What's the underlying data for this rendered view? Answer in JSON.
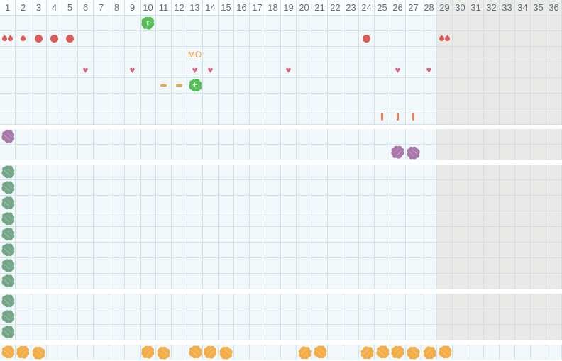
{
  "colors": {
    "page_background": "#ffffff",
    "grid_background": "#f2f7f9",
    "grid_line": "#cfe4ee",
    "header_background": "#fbfdfe",
    "inactive_background": "#e9e9e7",
    "inactive_header_background": "#ebebe9",
    "inactive_grid_line": "#d8dcde",
    "drop_red": "#dc5955",
    "heart_pink": "#d6607f",
    "orange_text": "#f0a345",
    "tally_orange": "#ee8155",
    "bright_green": "#54c055",
    "sage_green": "#73a687",
    "purple": "#a978aa",
    "orange_scribble": "#f2ad48"
  },
  "grid": {
    "total_days": 36,
    "inactive_from_day": 29,
    "day_labels": [
      "1",
      "2",
      "3",
      "4",
      "5",
      "6",
      "7",
      "8",
      "9",
      "10",
      "11",
      "12",
      "13",
      "14",
      "15",
      "16",
      "17",
      "18",
      "19",
      "20",
      "21",
      "22",
      "23",
      "24",
      "25",
      "26",
      "27",
      "28",
      "29",
      "30",
      "31",
      "32",
      "33",
      "34",
      "35",
      "36"
    ],
    "sections": [
      {
        "name": "daily-events",
        "grayed": true,
        "rows": [
          {
            "name": "marker-row",
            "marks": [
              {
                "day": 10,
                "type": "scribble",
                "color": "bright_green",
                "label": "r"
              }
            ]
          },
          {
            "name": "drops-row",
            "marks": [
              {
                "day": 1,
                "type": "drop_double"
              },
              {
                "day": 2,
                "type": "drop_small"
              },
              {
                "day": 3,
                "type": "drop_large"
              },
              {
                "day": 4,
                "type": "drop_large"
              },
              {
                "day": 5,
                "type": "drop_large"
              },
              {
                "day": 24,
                "type": "drop_large"
              },
              {
                "day": 29,
                "type": "drop_double"
              }
            ]
          },
          {
            "name": "note-row",
            "marks": [
              {
                "day": 13,
                "type": "text",
                "label": "MO"
              }
            ]
          },
          {
            "name": "hearts-row",
            "marks": [
              {
                "day": 6,
                "type": "heart"
              },
              {
                "day": 9,
                "type": "heart"
              },
              {
                "day": 13,
                "type": "heart"
              },
              {
                "day": 14,
                "type": "heart"
              },
              {
                "day": 19,
                "type": "heart"
              },
              {
                "day": 26,
                "type": "heart"
              },
              {
                "day": 28,
                "type": "heart"
              }
            ]
          },
          {
            "name": "plus-row",
            "marks": [
              {
                "day": 11,
                "type": "dash"
              },
              {
                "day": 12,
                "type": "dash"
              },
              {
                "day": 13,
                "type": "scribble",
                "color": "bright_green",
                "label": "+"
              }
            ]
          },
          {
            "name": "blank-row",
            "marks": []
          },
          {
            "name": "tally-row",
            "marks": [
              {
                "day": 25,
                "type": "tally"
              },
              {
                "day": 26,
                "type": "tally"
              },
              {
                "day": 27,
                "type": "tally"
              }
            ]
          }
        ]
      },
      {
        "name": "purple-section",
        "grayed": true,
        "rows": [
          {
            "name": "purple-row-1",
            "marks": [
              {
                "day": 1,
                "type": "scribble",
                "color": "purple"
              }
            ]
          },
          {
            "name": "purple-row-2",
            "marks": [
              {
                "day": 26,
                "type": "scribble",
                "color": "purple"
              },
              {
                "day": 27,
                "type": "scribble",
                "color": "purple"
              }
            ]
          }
        ]
      },
      {
        "name": "green-section-upper",
        "grayed": true,
        "rows": [
          {
            "name": "green-row-1",
            "marks": [
              {
                "day": 1,
                "type": "scribble",
                "color": "sage_green"
              }
            ]
          },
          {
            "name": "green-row-2",
            "marks": [
              {
                "day": 1,
                "type": "scribble",
                "color": "sage_green"
              }
            ]
          },
          {
            "name": "green-row-3",
            "marks": [
              {
                "day": 1,
                "type": "scribble",
                "color": "sage_green"
              }
            ]
          },
          {
            "name": "green-row-4",
            "marks": [
              {
                "day": 1,
                "type": "scribble",
                "color": "sage_green"
              }
            ]
          },
          {
            "name": "green-row-5",
            "marks": [
              {
                "day": 1,
                "type": "scribble",
                "color": "sage_green"
              }
            ]
          },
          {
            "name": "green-row-6",
            "marks": [
              {
                "day": 1,
                "type": "scribble",
                "color": "sage_green"
              }
            ]
          },
          {
            "name": "green-row-7",
            "marks": [
              {
                "day": 1,
                "type": "scribble",
                "color": "sage_green"
              }
            ]
          },
          {
            "name": "green-row-8",
            "marks": [
              {
                "day": 1,
                "type": "scribble",
                "color": "sage_green"
              }
            ]
          }
        ]
      },
      {
        "name": "green-section-lower",
        "grayed": true,
        "rows": [
          {
            "name": "green-row-9",
            "marks": [
              {
                "day": 1,
                "type": "scribble",
                "color": "sage_green"
              }
            ]
          },
          {
            "name": "green-row-10",
            "marks": [
              {
                "day": 1,
                "type": "scribble",
                "color": "sage_green"
              }
            ]
          },
          {
            "name": "green-row-11",
            "marks": [
              {
                "day": 1,
                "type": "scribble",
                "color": "sage_green"
              }
            ]
          }
        ]
      },
      {
        "name": "orange-section",
        "grayed": false,
        "rows": [
          {
            "name": "orange-row",
            "marks": [
              {
                "day": 1,
                "type": "scribble",
                "color": "orange_scribble"
              },
              {
                "day": 2,
                "type": "scribble",
                "color": "orange_scribble"
              },
              {
                "day": 3,
                "type": "scribble",
                "color": "orange_scribble"
              },
              {
                "day": 10,
                "type": "scribble",
                "color": "orange_scribble"
              },
              {
                "day": 11,
                "type": "scribble",
                "color": "orange_scribble"
              },
              {
                "day": 13,
                "type": "scribble",
                "color": "orange_scribble"
              },
              {
                "day": 14,
                "type": "scribble",
                "color": "orange_scribble"
              },
              {
                "day": 15,
                "type": "scribble",
                "color": "orange_scribble"
              },
              {
                "day": 20,
                "type": "scribble",
                "color": "orange_scribble"
              },
              {
                "day": 21,
                "type": "scribble",
                "color": "orange_scribble"
              },
              {
                "day": 24,
                "type": "scribble",
                "color": "orange_scribble"
              },
              {
                "day": 25,
                "type": "scribble",
                "color": "orange_scribble"
              },
              {
                "day": 26,
                "type": "scribble",
                "color": "orange_scribble"
              },
              {
                "day": 27,
                "type": "scribble",
                "color": "orange_scribble"
              },
              {
                "day": 28,
                "type": "scribble",
                "color": "orange_scribble"
              },
              {
                "day": 29,
                "type": "scribble",
                "color": "orange_scribble"
              }
            ]
          }
        ]
      }
    ]
  }
}
